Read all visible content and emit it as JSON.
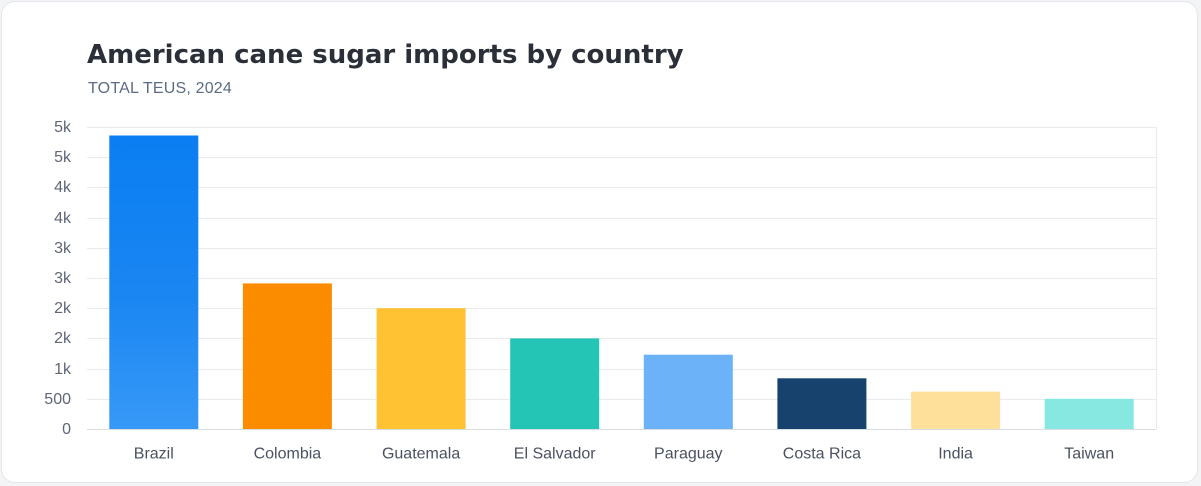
{
  "chart_data": {
    "type": "bar",
    "title": "American cane sugar imports by country",
    "subtitle": "TOTAL TEUS, 2024",
    "xlabel": "",
    "ylabel": "",
    "ylim": [
      0,
      5000
    ],
    "y_ticks": [
      0,
      500,
      1000,
      1500,
      2000,
      2500,
      3000,
      3500,
      4000,
      4500,
      5000
    ],
    "y_tick_labels": [
      "0",
      "500",
      "1k",
      "2k",
      "2k",
      "3k",
      "3k",
      "4k",
      "4k",
      "5k",
      "5k"
    ],
    "grid": true,
    "categories": [
      "Brazil",
      "Colombia",
      "Guatemala",
      "El Salvador",
      "Paraguay",
      "Costa Rica",
      "India",
      "Taiwan"
    ],
    "values": [
      4860,
      2410,
      2000,
      1500,
      1230,
      840,
      620,
      500
    ],
    "colors": [
      "#1282f0",
      "#fb8c00",
      "#ffc233",
      "#24c5b5",
      "#6cb2f9",
      "#17426e",
      "#ffe09a",
      "#86e8e1"
    ]
  }
}
